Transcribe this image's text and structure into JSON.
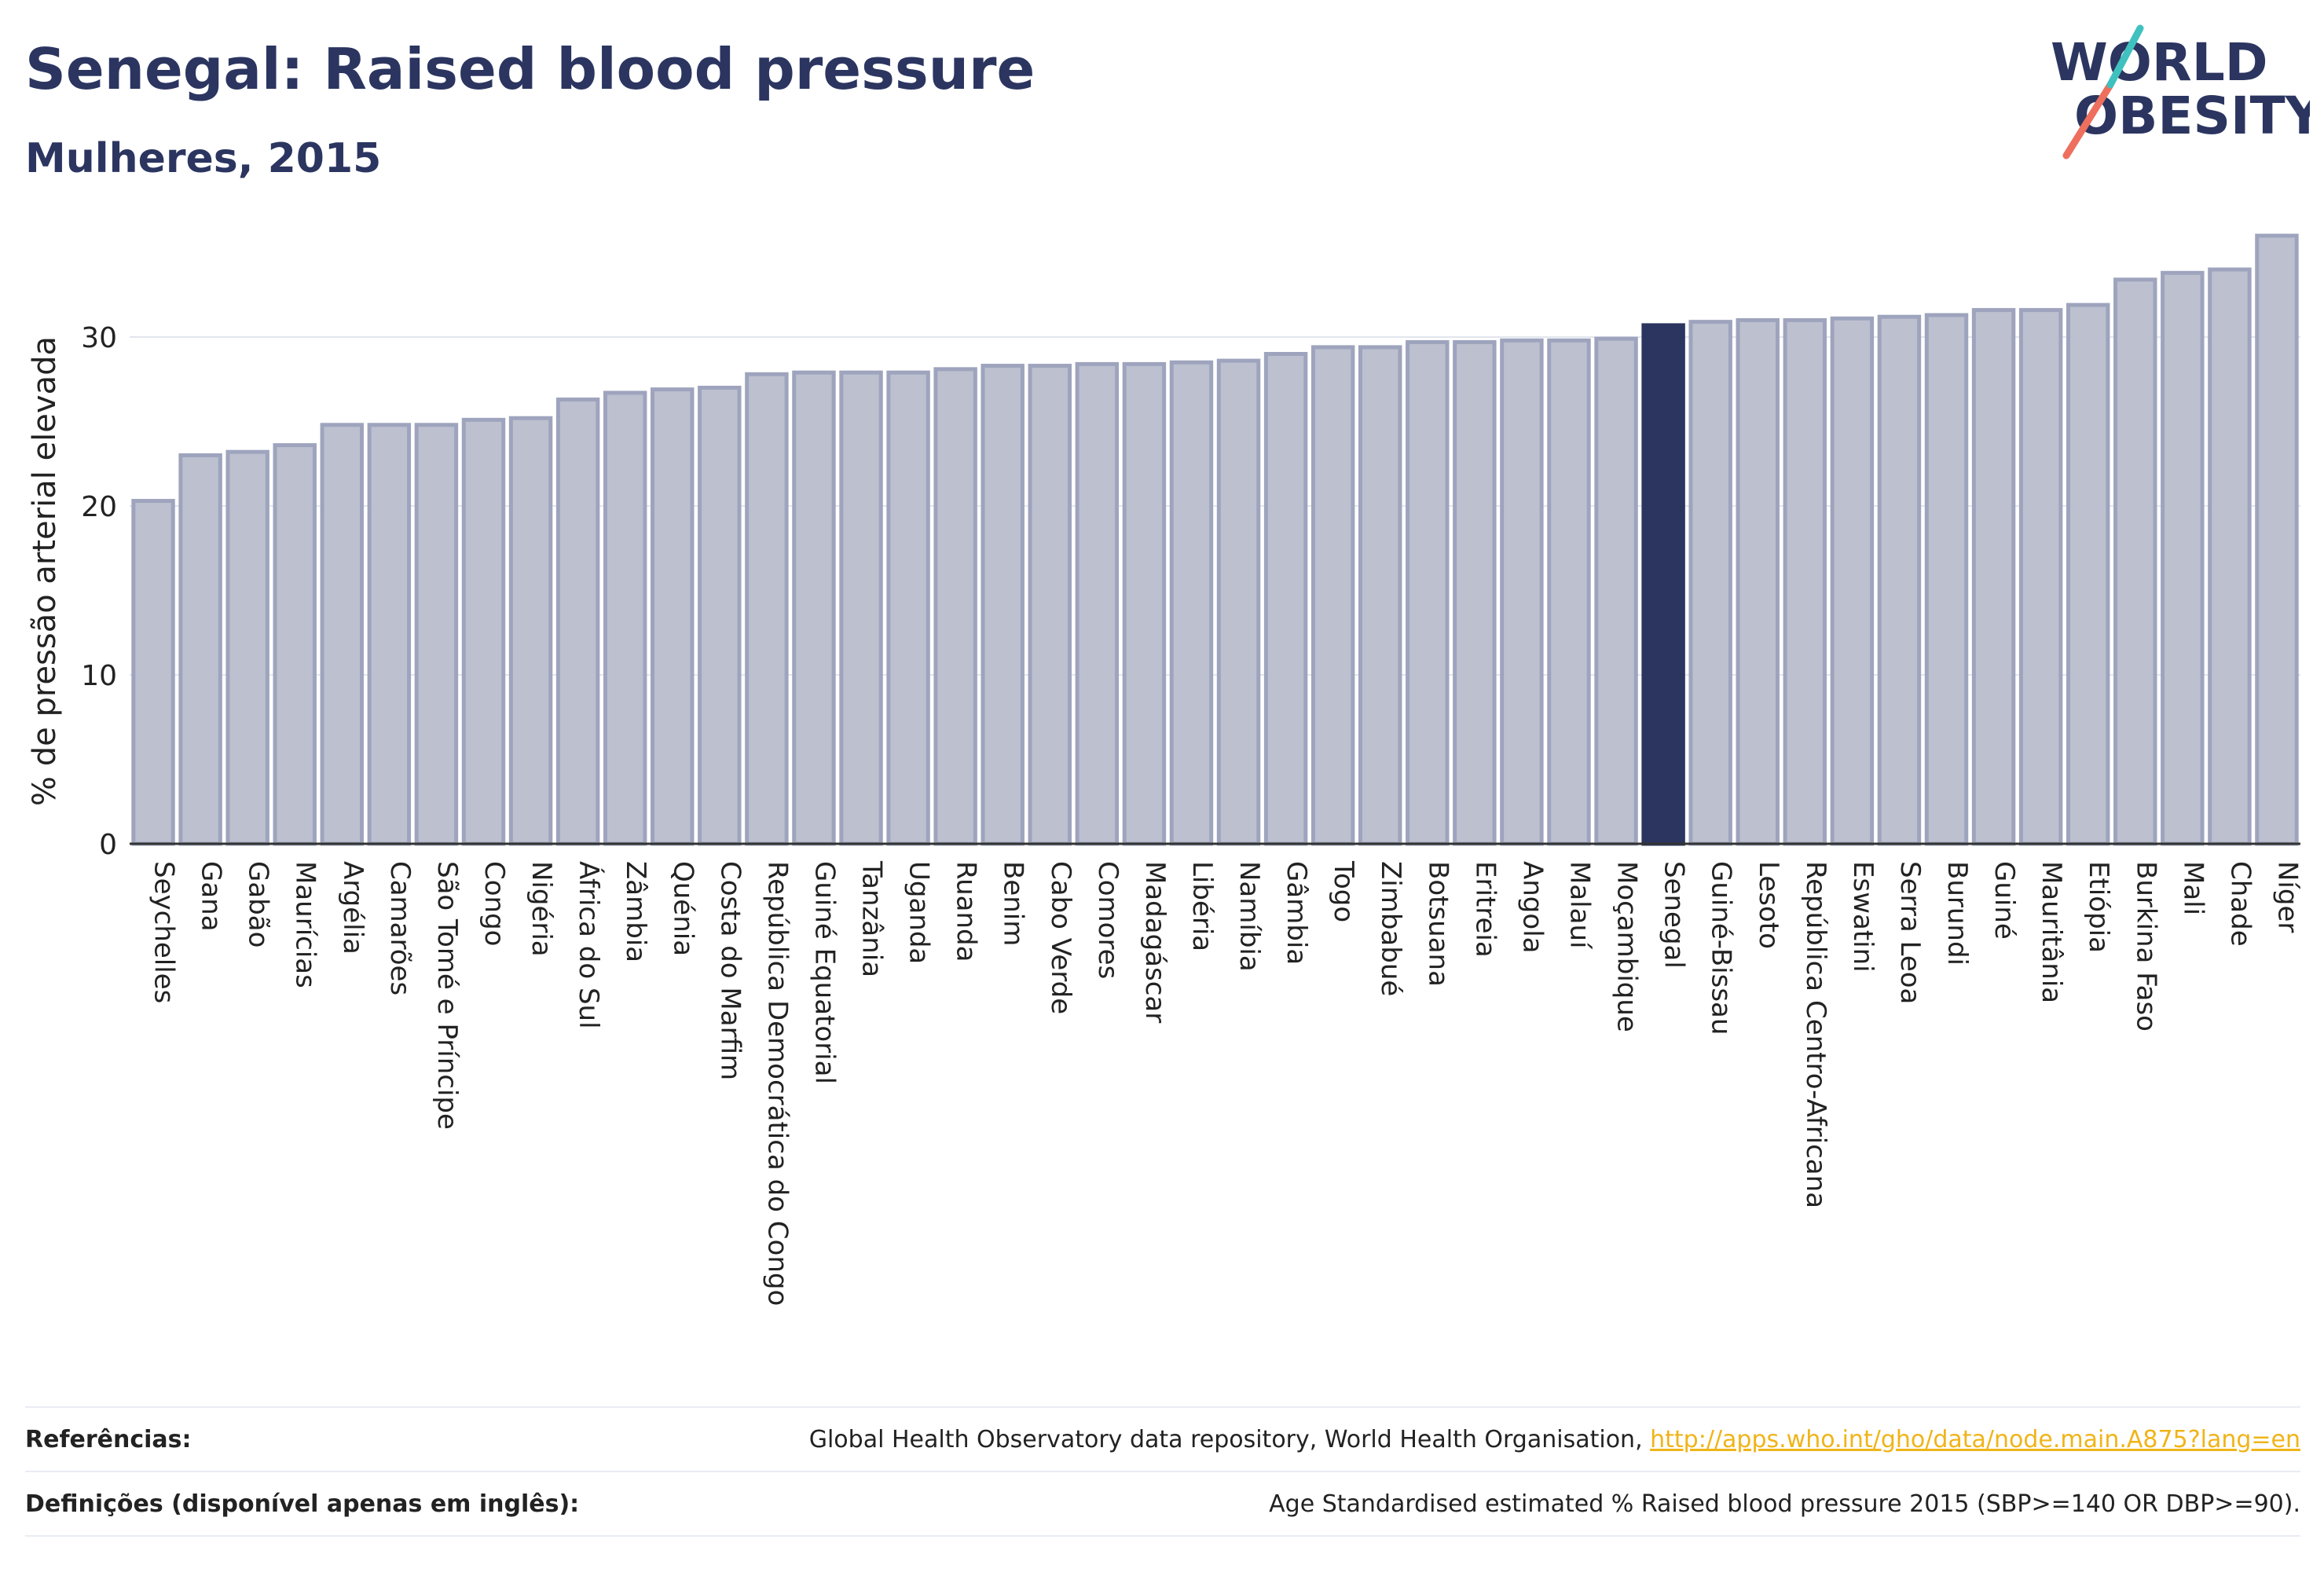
{
  "header": {
    "title": "Senegal: Raised blood pressure",
    "subtitle": "Mulheres, 2015"
  },
  "logo": {
    "line1": "WORLD",
    "line2": "OBESITY",
    "name": "world-obesity-logo"
  },
  "colors": {
    "bar": "#bcc0cf",
    "bar_edge": "#9ea4bd",
    "highlight": "#2b3560",
    "accent_teal": "#3fc1bf",
    "accent_coral": "#ee6f5d",
    "link": "#f0b418"
  },
  "chart_data": {
    "type": "bar",
    "ylabel": "% de pressão arterial elevada",
    "ylim": [
      0,
      36
    ],
    "yticks": [
      0,
      10,
      20,
      30
    ],
    "grid": true,
    "highlight": "Senegal",
    "categories": [
      "Seychelles",
      "Gana",
      "Gabão",
      "Maurícias",
      "Argélia",
      "Camarões",
      "São Tomé e Príncipe",
      "Congo",
      "Nigéria",
      "África do Sul",
      "Zâmbia",
      "Quénia",
      "Costa do Marfim",
      "República Democrática do Congo",
      "Guiné Equatorial",
      "Tanzânia",
      "Uganda",
      "Ruanda",
      "Benim",
      "Cabo Verde",
      "Comores",
      "Madagáscar",
      "Libéria",
      "Namíbia",
      "Gâmbia",
      "Togo",
      "Zimbabué",
      "Botsuana",
      "Eritreia",
      "Angola",
      "Malauí",
      "Moçambique",
      "Senegal",
      "Guiné-Bissau",
      "Lesoto",
      "República Centro-Africana",
      "Eswatini",
      "Serra Leoa",
      "Burundi",
      "Guiné",
      "Mauritânia",
      "Etiópia",
      "Burkina Faso",
      "Mali",
      "Chade",
      "Níger"
    ],
    "values": [
      20.3,
      23.0,
      23.2,
      23.6,
      24.8,
      24.8,
      24.8,
      25.1,
      25.2,
      26.3,
      26.7,
      26.9,
      27.0,
      27.8,
      27.9,
      27.9,
      27.9,
      28.1,
      28.3,
      28.3,
      28.4,
      28.4,
      28.5,
      28.6,
      29.0,
      29.4,
      29.4,
      29.7,
      29.7,
      29.8,
      29.8,
      29.9,
      30.7,
      30.9,
      31.0,
      31.0,
      31.1,
      31.2,
      31.3,
      31.6,
      31.6,
      31.9,
      33.4,
      33.8,
      34.0,
      36.0
    ]
  },
  "footer": {
    "references_label": "Referências:",
    "references_text": "Global Health Observatory data repository, World Health Organisation, ",
    "references_link": "http://apps.who.int/gho/data/node.main.A875?lang=en",
    "definitions_label": "Definições (disponível apenas em inglês):",
    "definitions_text": "Age Standardised estimated % Raised blood pressure 2015 (SBP>=140 OR DBP>=90)."
  }
}
